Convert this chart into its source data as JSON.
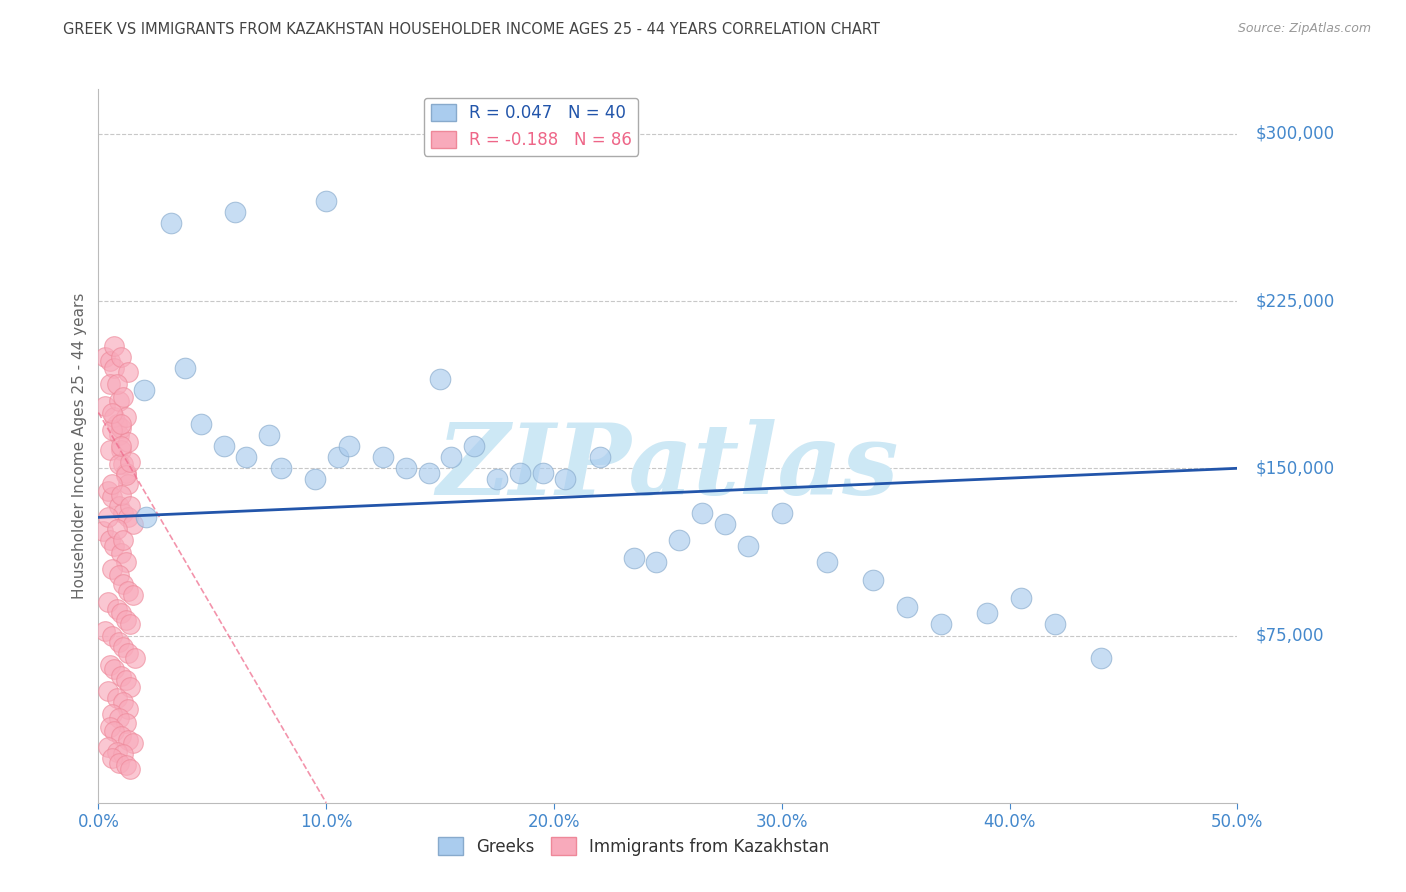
{
  "title": "GREEK VS IMMIGRANTS FROM KAZAKHSTAN HOUSEHOLDER INCOME AGES 25 - 44 YEARS CORRELATION CHART",
  "source": "Source: ZipAtlas.com",
  "ylabel": "Householder Income Ages 25 - 44 years",
  "xlabel_ticks": [
    "0.0%",
    "10.0%",
    "20.0%",
    "30.0%",
    "40.0%",
    "50.0%"
  ],
  "xlabel_vals": [
    0,
    10,
    20,
    30,
    40,
    50
  ],
  "ytick_labels": [
    "$75,000",
    "$150,000",
    "$225,000",
    "$300,000"
  ],
  "ytick_vals": [
    75000,
    150000,
    225000,
    300000
  ],
  "ylim": [
    0,
    320000
  ],
  "xlim": [
    0,
    50
  ],
  "legend_label1": "Greeks",
  "legend_label2": "Immigrants from Kazakhstan",
  "legend_r1": "R = 0.047",
  "legend_n1": "N = 40",
  "legend_r2": "R = -0.188",
  "legend_n2": "N = 86",
  "watermark": "ZIPatlas",
  "watermark_color": "#cde8f5",
  "background_color": "#ffffff",
  "grid_color": "#c8c8c8",
  "title_color": "#444444",
  "axis_tick_color": "#4488cc",
  "blue_dot_color": "#aaccee",
  "blue_dot_edge": "#88aacc",
  "pink_dot_color": "#f8aabb",
  "pink_dot_edge": "#ee8899",
  "blue_line_color": "#2255aa",
  "pink_line_color": "#ee6688",
  "blue_dots_x": [
    2.1,
    2.0,
    3.8,
    4.5,
    5.5,
    6.5,
    7.5,
    8.0,
    9.5,
    10.5,
    11.0,
    12.5,
    13.5,
    14.5,
    15.5,
    16.5,
    17.5,
    18.5,
    19.5,
    20.5,
    22.0,
    23.5,
    24.5,
    25.5,
    26.5,
    27.5,
    28.5,
    30.0,
    32.0,
    34.0,
    35.5,
    37.0,
    39.0,
    40.5,
    42.0,
    44.0,
    3.2,
    6.0,
    10.0,
    15.0
  ],
  "blue_dots_y": [
    128000,
    185000,
    195000,
    170000,
    160000,
    155000,
    165000,
    150000,
    145000,
    155000,
    160000,
    155000,
    150000,
    148000,
    155000,
    160000,
    145000,
    148000,
    148000,
    145000,
    155000,
    110000,
    108000,
    118000,
    130000,
    125000,
    115000,
    130000,
    108000,
    100000,
    88000,
    80000,
    85000,
    92000,
    80000,
    65000,
    260000,
    265000,
    270000,
    190000
  ],
  "pink_dots_x": [
    0.3,
    0.5,
    0.7,
    0.8,
    0.9,
    1.0,
    1.1,
    1.2,
    1.3,
    0.4,
    0.6,
    0.9,
    1.1,
    1.3,
    1.5,
    0.2,
    0.5,
    0.7,
    1.0,
    1.2,
    0.6,
    0.9,
    1.1,
    1.3,
    1.5,
    0.4,
    0.8,
    1.0,
    1.2,
    1.4,
    0.3,
    0.6,
    0.9,
    1.1,
    1.3,
    1.6,
    0.5,
    0.7,
    1.0,
    1.2,
    1.4,
    0.4,
    0.8,
    1.1,
    1.3,
    0.6,
    0.9,
    1.2,
    0.5,
    0.7,
    1.0,
    1.3,
    1.5,
    0.4,
    0.8,
    1.1,
    0.6,
    0.9,
    1.2,
    1.4,
    0.3,
    0.7,
    1.0,
    1.3,
    0.5,
    0.9,
    1.2,
    0.6,
    1.0,
    1.4,
    0.4,
    0.8,
    1.1,
    0.7,
    1.0,
    1.3,
    0.5,
    0.9,
    1.2,
    0.6,
    1.0,
    1.4,
    0.8,
    1.1,
    0.6,
    1.0
  ],
  "pink_dots_y": [
    200000,
    198000,
    195000,
    170000,
    165000,
    158000,
    152000,
    148000,
    143000,
    140000,
    137000,
    133000,
    130000,
    128000,
    125000,
    122000,
    118000,
    115000,
    112000,
    108000,
    105000,
    102000,
    98000,
    95000,
    93000,
    90000,
    87000,
    85000,
    82000,
    80000,
    77000,
    75000,
    72000,
    70000,
    67000,
    65000,
    62000,
    60000,
    57000,
    55000,
    52000,
    50000,
    47000,
    45000,
    42000,
    40000,
    38000,
    36000,
    34000,
    32000,
    30000,
    28000,
    27000,
    25000,
    23000,
    22000,
    20000,
    18000,
    17000,
    15000,
    178000,
    173000,
    168000,
    162000,
    158000,
    152000,
    147000,
    143000,
    138000,
    133000,
    128000,
    123000,
    118000,
    205000,
    200000,
    193000,
    188000,
    180000,
    173000,
    167000,
    160000,
    153000,
    188000,
    182000,
    175000,
    170000
  ],
  "blue_trend_x0": 0,
  "blue_trend_y0": 128000,
  "blue_trend_x1": 50,
  "blue_trend_y1": 150000,
  "pink_trend_x0": 0,
  "pink_trend_y0": 175000,
  "pink_trend_x1": 10,
  "pink_trend_y1": 0
}
